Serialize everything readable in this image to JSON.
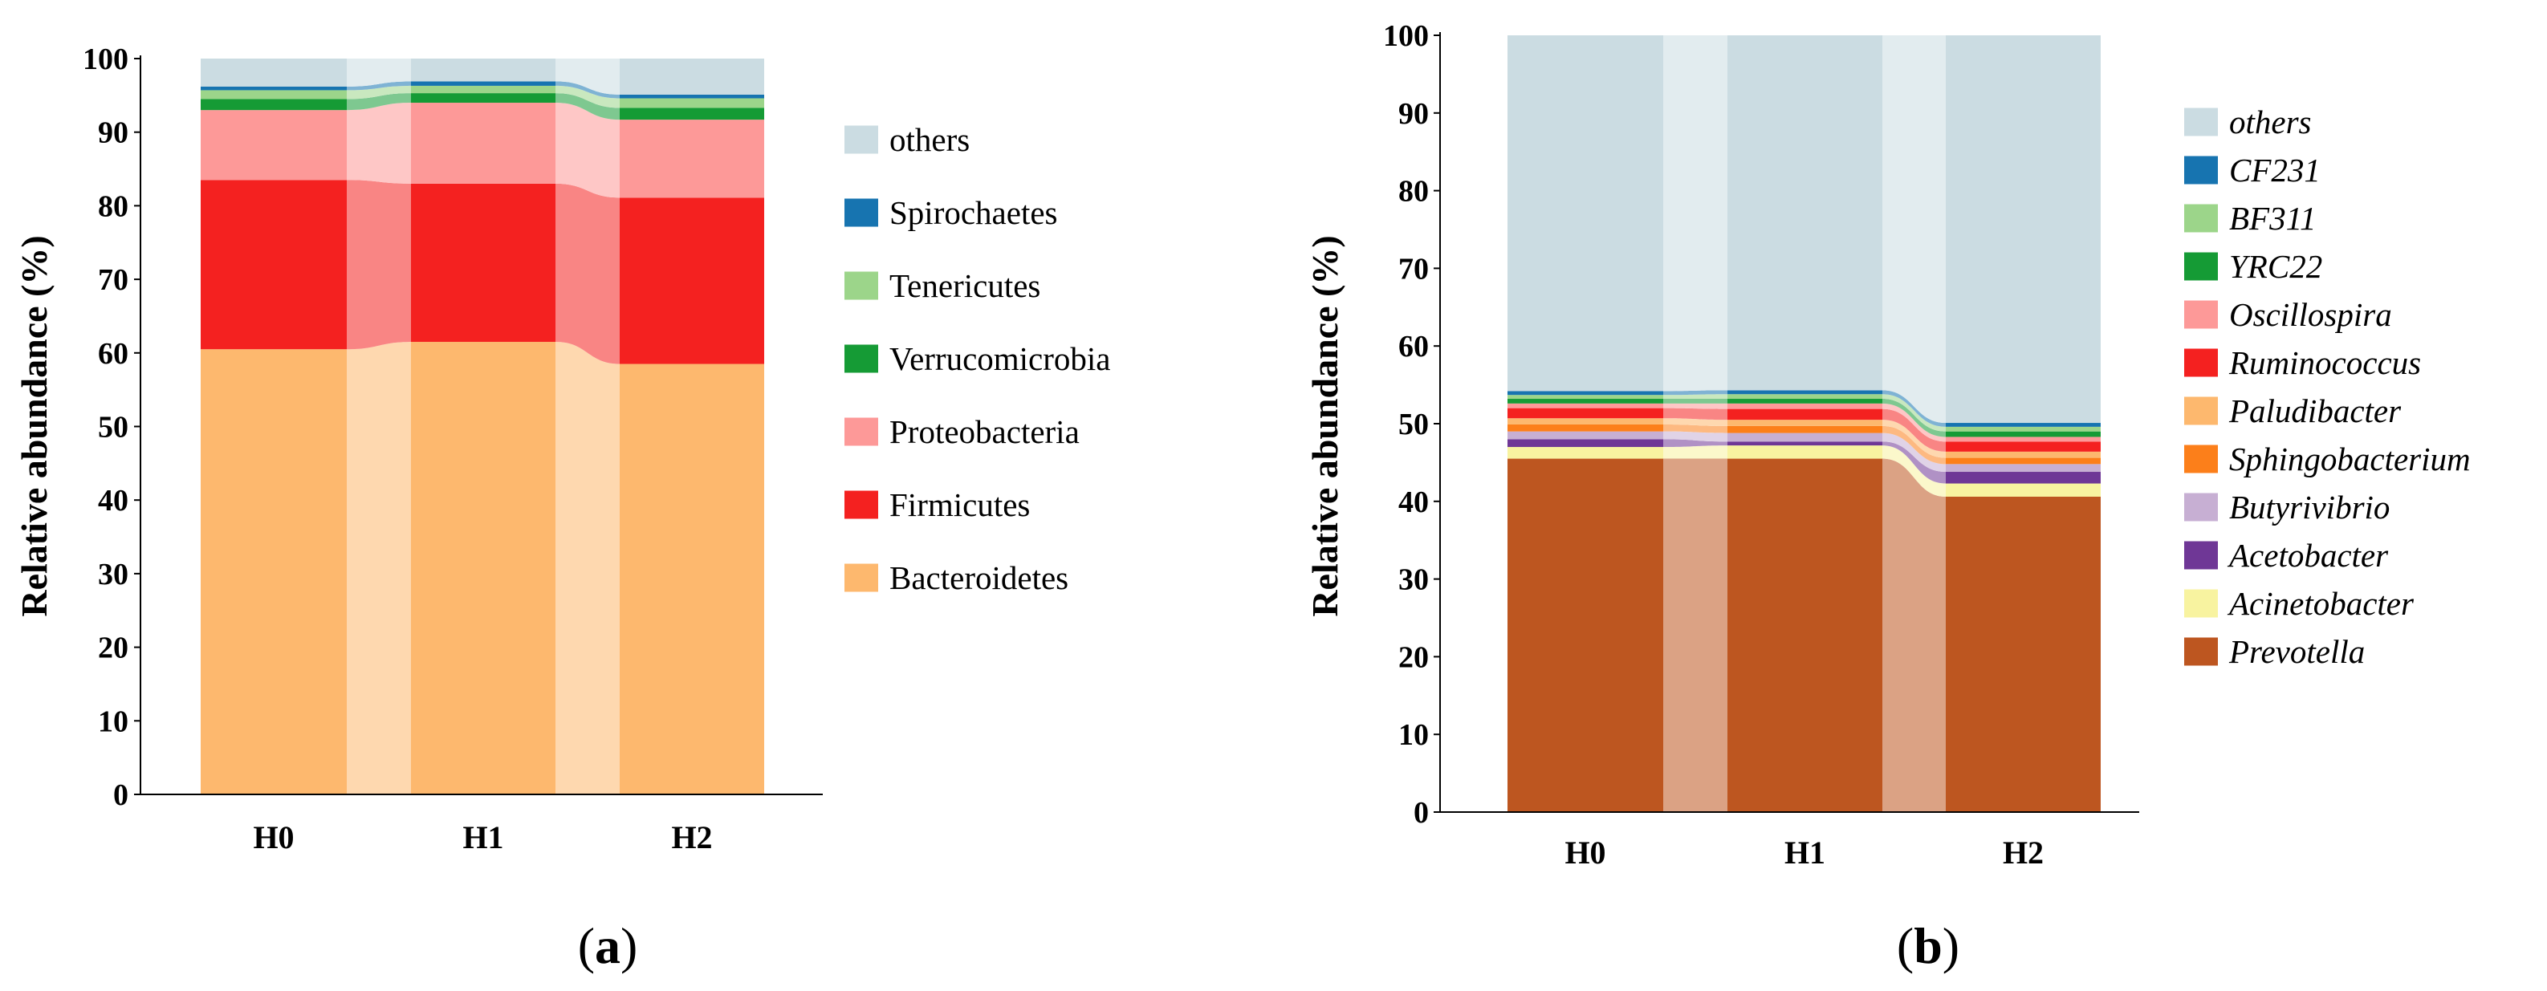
{
  "chart_data": [
    {
      "type": "bar",
      "stacked": true,
      "panel_label": "a",
      "title": "",
      "xlabel": "",
      "ylabel": "Relative abundance (%)",
      "ylim": [
        0,
        100
      ],
      "yticks": [
        0,
        10,
        20,
        30,
        40,
        50,
        60,
        70,
        80,
        90,
        100
      ],
      "categories": [
        "H0",
        "H1",
        "H2"
      ],
      "legend_position": "right",
      "legend_italic": false,
      "series": [
        {
          "name": "Bacteroidetes",
          "color": "#FDB86E",
          "values": [
            60.5,
            61.5,
            58.5
          ]
        },
        {
          "name": "Firmicutes",
          "color": "#F42120",
          "values": [
            23.0,
            21.5,
            22.6
          ]
        },
        {
          "name": "Proteobacteria",
          "color": "#FD9998",
          "values": [
            9.5,
            11.0,
            10.6
          ]
        },
        {
          "name": "Verrucomicrobia",
          "color": "#159B35",
          "values": [
            1.5,
            1.3,
            1.6
          ]
        },
        {
          "name": "Tenericutes",
          "color": "#9CD58A",
          "values": [
            1.2,
            1.0,
            1.3
          ]
        },
        {
          "name": "Spirochaetes",
          "color": "#1774B0",
          "values": [
            0.5,
            0.6,
            0.5
          ]
        },
        {
          "name": "others",
          "color": "#CBDCE2",
          "values": [
            3.8,
            3.1,
            4.9
          ]
        }
      ]
    },
    {
      "type": "bar",
      "stacked": true,
      "panel_label": "b",
      "title": "",
      "xlabel": "",
      "ylabel": "Relative abundance (%)",
      "ylim": [
        0,
        100
      ],
      "yticks": [
        0,
        10,
        20,
        30,
        40,
        50,
        60,
        70,
        80,
        90,
        100
      ],
      "categories": [
        "H0",
        "H1",
        "H2"
      ],
      "legend_position": "right",
      "legend_italic": true,
      "series": [
        {
          "name": "Prevotella",
          "color": "#BD5620",
          "values": [
            45.5,
            45.5,
            40.6
          ]
        },
        {
          "name": "Acinetobacter",
          "color": "#F8F3A0",
          "values": [
            1.5,
            1.7,
            1.7
          ]
        },
        {
          "name": "Acetobacter",
          "color": "#6F3796",
          "values": [
            1.0,
            0.5,
            1.5
          ]
        },
        {
          "name": "Butyrivibrio",
          "color": "#C7AFD3",
          "values": [
            1.0,
            1.1,
            1.0
          ]
        },
        {
          "name": "Sphingobacterium",
          "color": "#FC7F1A",
          "values": [
            0.9,
            0.9,
            0.8
          ]
        },
        {
          "name": "Paludibacter",
          "color": "#FDB86E",
          "values": [
            0.8,
            0.8,
            0.8
          ]
        },
        {
          "name": "Ruminococcus",
          "color": "#F42120",
          "values": [
            1.3,
            1.4,
            1.3
          ]
        },
        {
          "name": "Oscillospira",
          "color": "#FD9998",
          "values": [
            0.6,
            0.7,
            0.6
          ]
        },
        {
          "name": "YRC22",
          "color": "#159B35",
          "values": [
            0.6,
            0.6,
            0.7
          ]
        },
        {
          "name": "BF311",
          "color": "#9CD58A",
          "values": [
            0.5,
            0.6,
            0.6
          ]
        },
        {
          "name": "CF231",
          "color": "#1774B0",
          "values": [
            0.5,
            0.5,
            0.5
          ]
        },
        {
          "name": "others",
          "color": "#CBDCE2",
          "values": [
            45.8,
            45.7,
            49.9
          ]
        }
      ]
    }
  ]
}
